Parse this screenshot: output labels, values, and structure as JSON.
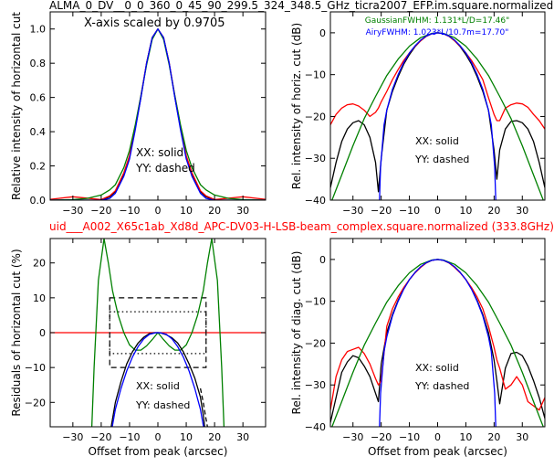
{
  "figure": {
    "top_title": "ALMA_0_DV__0_0_360_0_45_90_299.5_324_348.5_GHz_ticra2007_EFP.im.square.normalized",
    "mid_title": "uid___A002_X65c1ab_Xd8d_APC-DV03-H-LSB-beam_complex.square.normalized (333.8GHz)",
    "mid_title_color": "#ff0000"
  },
  "chart_data": [
    {
      "id": "horiz-linear",
      "type": "line",
      "ylabel": "Relative intensity of horizontal cut",
      "xlabel": "",
      "xlim": [
        -38,
        38
      ],
      "ylim": [
        0,
        1.1
      ],
      "xticks": [
        -30,
        -20,
        -10,
        0,
        10,
        20,
        30
      ],
      "yticks": [
        0.0,
        0.2,
        0.4,
        0.6,
        0.8,
        1.0
      ],
      "ytick_labels": [
        "0.0",
        "0.2",
        "0.4",
        "0.6",
        "0.8",
        "1.0"
      ],
      "annotations": [
        {
          "text": "X-axis scaled by 0.9705"
        },
        {
          "text": "XX: solid"
        },
        {
          "text": "YY: dashed"
        }
      ],
      "series": [
        {
          "color": "#000000",
          "x": [
            -38,
            -30,
            -25,
            -20,
            -17,
            -15,
            -12,
            -10,
            -8,
            -6,
            -4,
            -2,
            0,
            2,
            4,
            6,
            8,
            10,
            12,
            15,
            17,
            20,
            25,
            30,
            38
          ],
          "y": [
            0.0,
            0.0,
            0.0,
            0.0,
            0.02,
            0.05,
            0.15,
            0.25,
            0.42,
            0.6,
            0.8,
            0.95,
            1.0,
            0.95,
            0.8,
            0.6,
            0.42,
            0.25,
            0.15,
            0.05,
            0.02,
            0.0,
            0.0,
            0.0,
            0.0
          ]
        },
        {
          "color": "#ff0000",
          "x": [
            -38,
            -30,
            -25,
            -20,
            -17,
            -15,
            -12,
            -10,
            -8,
            -6,
            -4,
            -2,
            0,
            2,
            4,
            6,
            8,
            10,
            12,
            15,
            17,
            20,
            25,
            30,
            38
          ],
          "y": [
            0.005,
            0.02,
            0.012,
            0.003,
            0.025,
            0.055,
            0.16,
            0.26,
            0.43,
            0.61,
            0.8,
            0.95,
            1.0,
            0.95,
            0.8,
            0.61,
            0.43,
            0.26,
            0.16,
            0.055,
            0.025,
            0.003,
            0.012,
            0.02,
            0.005
          ]
        },
        {
          "color": "#008000",
          "x": [
            -38,
            -30,
            -25,
            -20,
            -17,
            -15,
            -12,
            -10,
            -8,
            -6,
            -4,
            -2,
            0,
            2,
            4,
            6,
            8,
            10,
            12,
            15,
            17,
            20,
            25,
            30,
            38
          ],
          "y": [
            0.0,
            0.003,
            0.01,
            0.03,
            0.06,
            0.09,
            0.19,
            0.29,
            0.44,
            0.61,
            0.79,
            0.94,
            1.0,
            0.94,
            0.79,
            0.61,
            0.44,
            0.29,
            0.19,
            0.09,
            0.06,
            0.03,
            0.01,
            0.003,
            0.0
          ]
        },
        {
          "color": "#0000ff",
          "x": [
            -38,
            -30,
            -25,
            -20,
            -17,
            -15,
            -12,
            -10,
            -8,
            -6,
            -4,
            -2,
            0,
            2,
            4,
            6,
            8,
            10,
            12,
            15,
            17,
            20,
            25,
            30,
            38
          ],
          "y": [
            0.0,
            0.0,
            0.0,
            0.0,
            0.01,
            0.04,
            0.14,
            0.24,
            0.41,
            0.6,
            0.8,
            0.95,
            1.0,
            0.95,
            0.8,
            0.6,
            0.41,
            0.24,
            0.14,
            0.04,
            0.01,
            0.0,
            0.0,
            0.0,
            0.0
          ]
        }
      ]
    },
    {
      "id": "horiz-db",
      "type": "line",
      "ylabel": "Rel. intensity of horiz. cut (dB)",
      "xlabel": "",
      "xlim": [
        -38,
        38
      ],
      "ylim": [
        -40,
        5
      ],
      "xticks": [
        -30,
        -20,
        -10,
        0,
        10,
        20,
        30
      ],
      "yticks": [
        0,
        -10,
        -20,
        -30,
        -40
      ],
      "ytick_labels": [
        "0",
        "−10",
        "−20",
        "−30",
        "−40"
      ],
      "annotations": [
        {
          "text": "GaussianFWHM: 1.131*L/D=17.46\"",
          "color": "#008000"
        },
        {
          "text": "AiryFWHM: 1.023*L/10.7m=17.70\"",
          "color": "#0000ff"
        },
        {
          "text": "XX: solid"
        },
        {
          "text": "YY: dashed"
        }
      ],
      "series": [
        {
          "color": "#000000",
          "x": [
            -38,
            -36,
            -34,
            -32,
            -30,
            -28,
            -26,
            -24,
            -22,
            -21,
            -20,
            -18,
            -16,
            -14,
            -12,
            -10,
            -8,
            -6,
            -4,
            -2,
            0,
            2,
            4,
            6,
            8,
            10,
            12,
            14,
            16,
            18,
            20,
            21,
            22,
            24,
            26,
            28,
            30,
            32,
            34,
            36,
            38
          ],
          "y": [
            -37,
            -31,
            -26,
            -23,
            -21.5,
            -21,
            -22,
            -25,
            -31,
            -38,
            -30,
            -18.5,
            -14,
            -10.5,
            -7.5,
            -5.2,
            -3.3,
            -1.9,
            -0.8,
            -0.2,
            0,
            -0.2,
            -0.8,
            -1.9,
            -3.3,
            -5.2,
            -7.5,
            -10.5,
            -14,
            -18.5,
            -28,
            -35,
            -28,
            -23,
            -21.2,
            -21,
            -21.5,
            -23,
            -26,
            -31,
            -37
          ]
        },
        {
          "color": "#ff0000",
          "x": [
            -38,
            -36,
            -34,
            -32,
            -30,
            -28,
            -26,
            -24,
            -22,
            -21,
            -20,
            -18,
            -16,
            -14,
            -12,
            -10,
            -8,
            -6,
            -4,
            -2,
            0,
            2,
            4,
            6,
            8,
            10,
            12,
            14,
            16,
            18,
            20,
            21,
            22,
            24,
            26,
            28,
            30,
            32,
            34,
            36,
            38
          ],
          "y": [
            -22,
            -19.5,
            -18,
            -17.2,
            -17,
            -17.5,
            -18.5,
            -20,
            -19,
            -18,
            -16.5,
            -14,
            -11.2,
            -8.8,
            -6.6,
            -4.8,
            -3.2,
            -1.9,
            -0.8,
            -0.2,
            0,
            -0.2,
            -0.8,
            -1.9,
            -3.2,
            -4.8,
            -6.6,
            -8.8,
            -11.2,
            -15.5,
            -19.5,
            -21,
            -21,
            -18,
            -17.2,
            -16.8,
            -17,
            -17.8,
            -19.5,
            -21,
            -23
          ]
        },
        {
          "color": "#008000",
          "x": [
            -38,
            -34,
            -30,
            -26,
            -22,
            -18,
            -14,
            -10,
            -6,
            -2,
            0,
            2,
            6,
            10,
            14,
            18,
            22,
            26,
            30,
            34,
            38
          ],
          "y": [
            -41,
            -34,
            -27,
            -20.5,
            -15.2,
            -10.2,
            -6.3,
            -3.2,
            -1.16,
            -0.13,
            0,
            -0.13,
            -1.16,
            -3.2,
            -6.3,
            -10.2,
            -15.2,
            -20.5,
            -27,
            -34,
            -41
          ]
        },
        {
          "color": "#0000ff",
          "x": [
            -20.6,
            -20.2,
            -19,
            -18,
            -16,
            -14,
            -12,
            -10,
            -8,
            -6,
            -4,
            -2,
            0,
            2,
            4,
            6,
            8,
            10,
            12,
            14,
            16,
            18,
            19,
            20.2,
            20.6
          ],
          "y": [
            -40,
            -32,
            -22,
            -18.5,
            -13.5,
            -10,
            -7.1,
            -4.8,
            -3.1,
            -1.75,
            -0.77,
            -0.19,
            0,
            -0.19,
            -0.77,
            -1.75,
            -3.1,
            -4.8,
            -7.1,
            -10,
            -13.5,
            -18.5,
            -22,
            -32,
            -40
          ]
        }
      ]
    },
    {
      "id": "horiz-residuals",
      "type": "line",
      "ylabel": "Residuals of horizontal cut (%)",
      "xlabel": "Offset from peak (arcsec)",
      "xlim": [
        -38,
        38
      ],
      "ylim": [
        -27,
        27
      ],
      "xticks": [
        -30,
        -20,
        -10,
        0,
        10,
        20,
        30
      ],
      "yticks": [
        20,
        10,
        0,
        -10,
        -20
      ],
      "ytick_labels": [
        "20",
        "10",
        "0",
        "−10",
        "−20"
      ],
      "annotations": [
        {
          "text": "XX: solid"
        },
        {
          "text": "YY: dashed"
        }
      ],
      "reference_lines": [
        {
          "y": 0,
          "color": "#ff0000"
        }
      ],
      "boxes": [
        {
          "x0": -17,
          "x1": 17,
          "y0": -10,
          "y1": 10,
          "style": "dashed"
        },
        {
          "x0": -17,
          "x1": 17,
          "y0": -6,
          "y1": 6,
          "style": "dotted"
        }
      ],
      "series": [
        {
          "color": "#008000",
          "x": [
            -23.3,
            -22.5,
            -21,
            -19,
            -17.5,
            -16,
            -14,
            -12,
            -10,
            -8,
            -6,
            -4,
            -2,
            0,
            2,
            4,
            6,
            8,
            10,
            12,
            14,
            16,
            17.5,
            19,
            21,
            22.5,
            23.3
          ],
          "y": [
            -27,
            -10,
            15,
            27,
            20,
            12,
            5,
            0,
            -3.5,
            -5,
            -5,
            -3.8,
            -2,
            0,
            -2,
            -3.8,
            -5,
            -5,
            -3.5,
            0,
            5,
            12,
            20,
            27,
            15,
            -10,
            -27
          ]
        },
        {
          "color": "#000000",
          "x": [
            -16.5,
            -15,
            -13,
            -11,
            -9,
            -7,
            -5,
            -3,
            -1,
            0,
            1,
            3,
            5,
            7,
            9,
            11,
            13,
            15,
            16,
            16.5
          ],
          "y": [
            -27,
            -20,
            -14,
            -9,
            -5.5,
            -3,
            -1.3,
            -0.3,
            0,
            0,
            -0.1,
            -0.6,
            -1.5,
            -3,
            -5.5,
            -9,
            -13,
            -18.5,
            -23.5,
            -27
          ]
        },
        {
          "color": "#000000",
          "dashed": true,
          "x": [
            15,
            16,
            16.8,
            17.5
          ],
          "y": [
            -16,
            -20,
            -24,
            -27
          ]
        },
        {
          "color": "#0000ff",
          "x": [
            -16.1,
            -15,
            -13,
            -11,
            -9,
            -7,
            -5,
            -3,
            -1,
            0,
            1,
            3,
            5,
            7,
            9,
            11,
            13,
            15,
            16.1
          ],
          "y": [
            -27,
            -22,
            -16,
            -11,
            -7,
            -4,
            -1.8,
            -0.5,
            -0.05,
            0,
            -0.05,
            -0.5,
            -1.8,
            -4,
            -7,
            -11,
            -16,
            -22,
            -27
          ]
        }
      ]
    },
    {
      "id": "diag-db",
      "type": "line",
      "ylabel": "Rel. intensity of diag. cut (dB)",
      "xlabel": "Offset from peak (arcsec)",
      "xlim": [
        -38,
        38
      ],
      "ylim": [
        -40,
        5
      ],
      "xticks": [
        -30,
        -20,
        -10,
        0,
        10,
        20,
        30
      ],
      "yticks": [
        0,
        -10,
        -20,
        -30,
        -40
      ],
      "ytick_labels": [
        "0",
        "−10",
        "−20",
        "−30",
        "−40"
      ],
      "annotations": [
        {
          "text": "XX: solid"
        },
        {
          "text": "YY: dashed"
        }
      ],
      "series": [
        {
          "color": "#000000",
          "x": [
            -38,
            -36,
            -34,
            -32,
            -30,
            -28,
            -26,
            -24,
            -22,
            -21,
            -20,
            -18,
            -16,
            -14,
            -12,
            -10,
            -8,
            -6,
            -4,
            -2,
            0,
            2,
            4,
            6,
            8,
            10,
            12,
            14,
            16,
            18,
            20,
            21,
            22,
            24,
            26,
            28,
            30,
            32,
            34,
            36,
            38
          ],
          "y": [
            -39,
            -33,
            -27,
            -24.5,
            -23,
            -23.5,
            -25.5,
            -28,
            -32,
            -34,
            -25,
            -17.5,
            -13.2,
            -9.8,
            -7,
            -4.8,
            -3.1,
            -1.8,
            -0.8,
            -0.2,
            0,
            -0.2,
            -0.8,
            -1.8,
            -3.1,
            -4.8,
            -7,
            -9.8,
            -13.2,
            -17.5,
            -24,
            -29,
            -34.5,
            -26,
            -22.5,
            -22.2,
            -23,
            -25.5,
            -29,
            -33,
            -38
          ]
        },
        {
          "color": "#ff0000",
          "x": [
            -38,
            -36,
            -34,
            -32,
            -30,
            -28,
            -26,
            -24,
            -22,
            -21,
            -20,
            -18,
            -16,
            -14,
            -12,
            -10,
            -8,
            -6,
            -4,
            -2,
            0,
            2,
            4,
            6,
            8,
            10,
            12,
            14,
            16,
            18,
            20,
            21,
            22,
            24,
            26,
            28,
            30,
            32,
            34,
            36,
            38
          ],
          "y": [
            -36,
            -28,
            -24,
            -22,
            -21.5,
            -21,
            -22.5,
            -25,
            -28.5,
            -30,
            -29,
            -16,
            -11.8,
            -9,
            -6.7,
            -4.8,
            -3.2,
            -1.9,
            -0.8,
            -0.2,
            0,
            -0.2,
            -0.8,
            -1.9,
            -3.2,
            -4.8,
            -6.7,
            -9,
            -11.8,
            -16,
            -21,
            -24,
            -26,
            -31,
            -30,
            -28,
            -30,
            -34,
            -35,
            -36,
            -33
          ]
        },
        {
          "color": "#008000",
          "x": [
            -38,
            -34,
            -30,
            -26,
            -22,
            -18,
            -14,
            -10,
            -6,
            -2,
            0,
            2,
            6,
            10,
            14,
            18,
            22,
            26,
            30,
            34,
            38
          ],
          "y": [
            -41,
            -34,
            -27,
            -20.5,
            -15.2,
            -10.2,
            -6.3,
            -3.2,
            -1.16,
            -0.13,
            0,
            -0.13,
            -1.16,
            -3.2,
            -6.3,
            -10.2,
            -15.2,
            -20.5,
            -27,
            -34,
            -41
          ]
        },
        {
          "color": "#0000ff",
          "x": [
            -20.6,
            -20.2,
            -19,
            -18,
            -16,
            -14,
            -12,
            -10,
            -8,
            -6,
            -4,
            -2,
            0,
            2,
            4,
            6,
            8,
            10,
            12,
            14,
            16,
            18,
            19,
            20.2,
            20.6
          ],
          "y": [
            -40,
            -32,
            -22,
            -18.5,
            -13.5,
            -10,
            -7.1,
            -4.8,
            -3.1,
            -1.75,
            -0.77,
            -0.19,
            0,
            -0.19,
            -0.77,
            -1.75,
            -3.1,
            -4.8,
            -7.1,
            -10,
            -13.5,
            -18.5,
            -22,
            -32,
            -40
          ]
        }
      ]
    }
  ]
}
